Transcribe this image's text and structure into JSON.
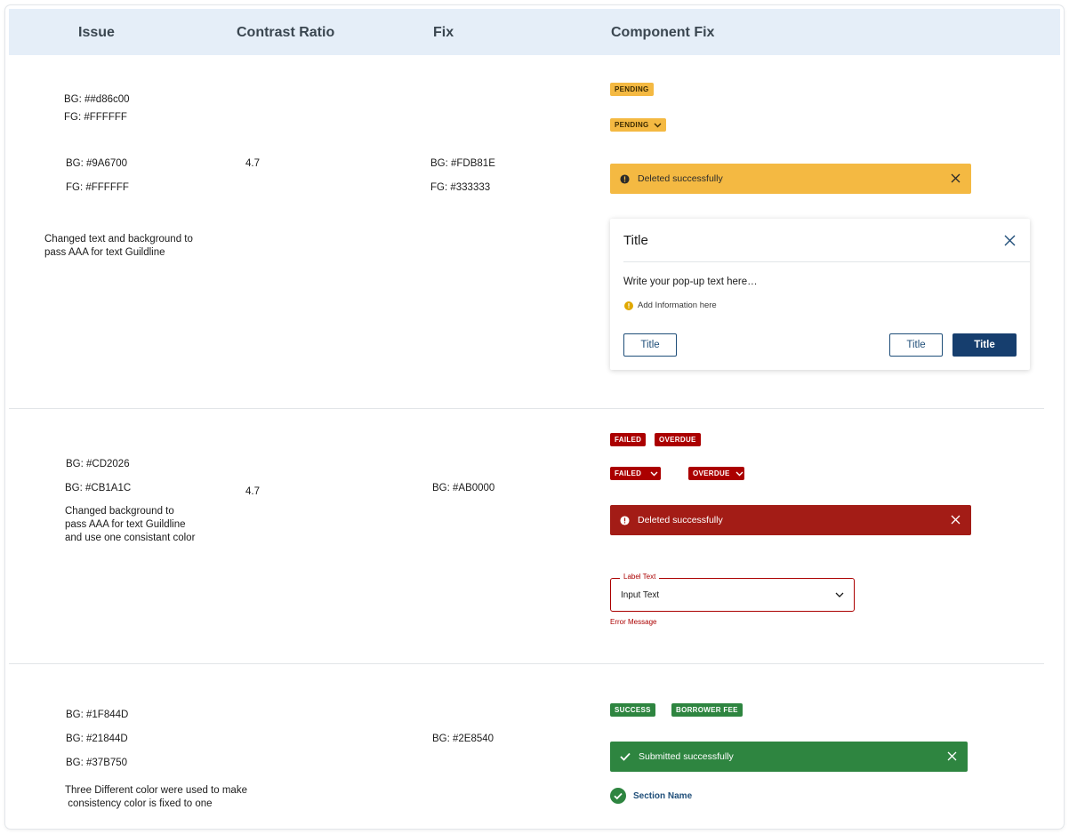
{
  "header": {
    "col_issue": "Issue",
    "col_contrast": "Contrast Ratio",
    "col_fix": "Fix",
    "col_component": "Component Fix"
  },
  "colors": {
    "header_bg": "#e5eef8",
    "warning": "#f4b942",
    "error": "#ab0000",
    "success": "#2e8540",
    "primary": "#163e6e"
  },
  "rows": [
    {
      "issue_lines_a": [
        "BG: ##d86c00",
        "FG: #FFFFFF"
      ],
      "issue_lines_b": [
        "BG: #9A6700",
        "FG: #FFFFFF"
      ],
      "note": [
        "Changed text and background to",
        "pass AAA for text Guildline"
      ],
      "contrast": "4.7",
      "fix": [
        "BG: #FDB81E",
        "FG: #333333"
      ],
      "badge_plain": "PENDING",
      "badge_dropdown": "PENDING",
      "alert_text": "Deleted successfully",
      "modal": {
        "title": "Title",
        "body": "Write your pop-up text here…",
        "info": "Add Information here",
        "btn_left": "Title",
        "btn_secondary": "Title",
        "btn_primary": "Title"
      }
    },
    {
      "issue_lines": [
        "BG: #CD2026",
        "BG: #CB1A1C"
      ],
      "note": [
        "Changed background to",
        "pass AAA for text Guildline",
        "and use one consistant color"
      ],
      "contrast": "4.7",
      "fix": "BG: #AB0000",
      "badges": [
        "FAILED",
        "OVERDUE"
      ],
      "badges_dropdown": [
        "FAILED",
        "OVERDUE"
      ],
      "alert_text": "Deleted successfully",
      "field": {
        "label": "Label Text",
        "value": "Input Text",
        "error": "Error Message"
      }
    },
    {
      "issue_lines": [
        "BG: #1F844D",
        "BG: #21844D",
        "BG: #37B750"
      ],
      "note": [
        "Three Different color were used to make",
        " consistency color is fixed to one"
      ],
      "fix": "BG: #2E8540",
      "badges": [
        "SUCCESS",
        "BORROWER FEE"
      ],
      "alert_text": "Submitted successfully",
      "section_name": "Section Name"
    }
  ]
}
